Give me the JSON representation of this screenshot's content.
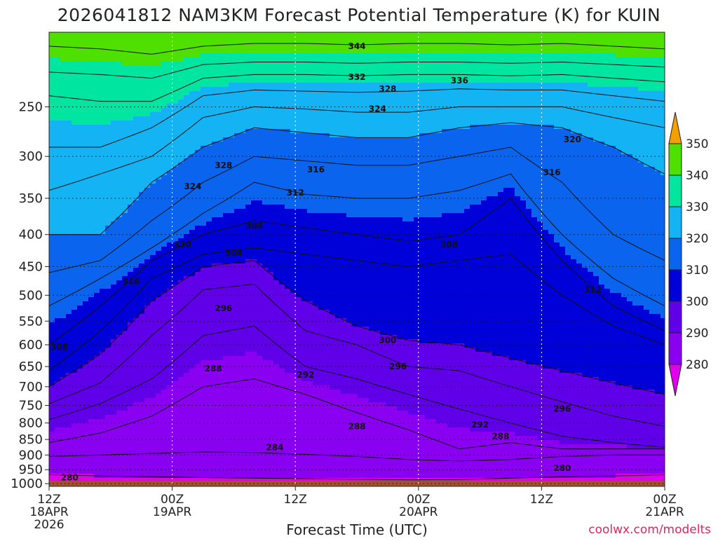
{
  "chart_data": {
    "type": "heatmap",
    "title": "2026041812 NAM3KM Forecast Potential Temperature (K) for KUIN",
    "xlabel": "Forecast Time (UTC)",
    "ylabel": "",
    "credit": "coolwx.com/modelts",
    "y_axis": {
      "scale": "log-pressure",
      "range_hpa": [
        1010,
        190
      ],
      "ticks": [
        "250",
        "300",
        "350",
        "400",
        "450",
        "500",
        "550",
        "600",
        "650",
        "700",
        "750",
        "800",
        "850",
        "900",
        "950",
        "1000"
      ]
    },
    "x_axis": {
      "range_hours": [
        0,
        60
      ],
      "ticks": [
        {
          "hour": 0,
          "lines": [
            "12Z",
            "18APR",
            "2026"
          ]
        },
        {
          "hour": 12,
          "lines": [
            "00Z",
            "19APR"
          ]
        },
        {
          "hour": 24,
          "lines": [
            "12Z"
          ]
        },
        {
          "hour": 36,
          "lines": [
            "00Z",
            "20APR"
          ]
        },
        {
          "hour": 48,
          "lines": [
            "12Z"
          ]
        },
        {
          "hour": 60,
          "lines": [
            "00Z",
            "21APR"
          ]
        }
      ]
    },
    "colorbar": {
      "levels": [
        280,
        290,
        300,
        310,
        320,
        330,
        340,
        350
      ],
      "labels": [
        "280",
        "290",
        "300",
        "310",
        "320",
        "330",
        "340",
        "350"
      ],
      "colors": [
        "#e000f0",
        "#8a00f0",
        "#6000e8",
        "#0000d8",
        "#0a64ee",
        "#14b4f4",
        "#00e6a0",
        "#50e000",
        "#f4f400",
        "#f4a000"
      ]
    },
    "ground_color": "#a0522d",
    "surface_pressure_hpa": 990,
    "contour_interval": 2,
    "isentropes": [
      {
        "theta": 280,
        "pressure_hpa": [
          968,
          972,
          975,
          978,
          980,
          982,
          984,
          986,
          985,
          980,
          975,
          972,
          968
        ]
      },
      {
        "theta": 284,
        "pressure_hpa": [
          905,
          900,
          895,
          890,
          892,
          898,
          905,
          915,
          920,
          915,
          905,
          900,
          900
        ]
      },
      {
        "theta": 288,
        "pressure_hpa": [
          860,
          830,
          780,
          700,
          680,
          720,
          770,
          820,
          880,
          860,
          880,
          880,
          880
        ]
      },
      {
        "theta": 292,
        "pressure_hpa": [
          790,
          745,
          680,
          580,
          560,
          650,
          680,
          720,
          760,
          800,
          840,
          860,
          875
        ]
      },
      {
        "theta": 296,
        "pressure_hpa": [
          745,
          690,
          580,
          490,
          480,
          570,
          600,
          650,
          660,
          700,
          740,
          780,
          810
        ]
      },
      {
        "theta": 300,
        "pressure_hpa": [
          700,
          620,
          510,
          450,
          440,
          510,
          560,
          590,
          600,
          630,
          660,
          690,
          720
        ]
      },
      {
        "theta": 304,
        "pressure_hpa": [
          660,
          570,
          470,
          430,
          420,
          430,
          440,
          450,
          440,
          430,
          500,
          560,
          600
        ]
      },
      {
        "theta": 308,
        "pressure_hpa": [
          600,
          520,
          440,
          400,
          380,
          390,
          400,
          410,
          400,
          350,
          440,
          520,
          570
        ]
      },
      {
        "theta": 312,
        "pressure_hpa": [
          520,
          470,
          420,
          370,
          330,
          345,
          350,
          350,
          340,
          320,
          400,
          470,
          520
        ]
      },
      {
        "theta": 316,
        "pressure_hpa": [
          460,
          440,
          380,
          330,
          300,
          305,
          310,
          310,
          300,
          290,
          330,
          400,
          440
        ]
      },
      {
        "theta": 320,
        "pressure_hpa": [
          400,
          400,
          330,
          290,
          270,
          275,
          280,
          280,
          270,
          265,
          270,
          290,
          320
        ]
      },
      {
        "theta": 324,
        "pressure_hpa": [
          340,
          320,
          300,
          260,
          250,
          252,
          255,
          255,
          250,
          250,
          250,
          260,
          270
        ]
      },
      {
        "theta": 328,
        "pressure_hpa": [
          290,
          290,
          270,
          240,
          235,
          236,
          237,
          236,
          234,
          235,
          235,
          240,
          245
        ]
      },
      {
        "theta": 332,
        "pressure_hpa": [
          240,
          245,
          245,
          225,
          222,
          222,
          223,
          222,
          222,
          223,
          222,
          225,
          228
        ]
      },
      {
        "theta": 336,
        "pressure_hpa": [
          220,
          222,
          225,
          214,
          212,
          212,
          213,
          212,
          212,
          213,
          212,
          214,
          216
        ]
      },
      {
        "theta": 344,
        "pressure_hpa": [
          200,
          202,
          206,
          200,
          198,
          198,
          199,
          198,
          198,
          199,
          198,
          200,
          202
        ]
      }
    ],
    "contour_labels": [
      {
        "text": "344",
        "hour": 30,
        "hpa": 200
      },
      {
        "text": "332",
        "hour": 30,
        "hpa": 224
      },
      {
        "text": "328",
        "hour": 33,
        "hpa": 234
      },
      {
        "text": "336",
        "hour": 40,
        "hpa": 227
      },
      {
        "text": "324",
        "hour": 32,
        "hpa": 252
      },
      {
        "text": "320",
        "hour": 51,
        "hpa": 282
      },
      {
        "text": "328",
        "hour": 17,
        "hpa": 310
      },
      {
        "text": "316",
        "hour": 26,
        "hpa": 315
      },
      {
        "text": "316",
        "hour": 49,
        "hpa": 318
      },
      {
        "text": "324",
        "hour": 14,
        "hpa": 335
      },
      {
        "text": "312",
        "hour": 24,
        "hpa": 343
      },
      {
        "text": "308",
        "hour": 20,
        "hpa": 387
      },
      {
        "text": "320",
        "hour": 13,
        "hpa": 415
      },
      {
        "text": "308",
        "hour": 39,
        "hpa": 415
      },
      {
        "text": "304",
        "hour": 18,
        "hpa": 428
      },
      {
        "text": "316",
        "hour": 8,
        "hpa": 475
      },
      {
        "text": "312",
        "hour": 53,
        "hpa": 490
      },
      {
        "text": "296",
        "hour": 17,
        "hpa": 525
      },
      {
        "text": "300",
        "hour": 33,
        "hpa": 590
      },
      {
        "text": "308",
        "hour": 1,
        "hpa": 605
      },
      {
        "text": "296",
        "hour": 34,
        "hpa": 650
      },
      {
        "text": "288",
        "hour": 16,
        "hpa": 655
      },
      {
        "text": "292",
        "hour": 25,
        "hpa": 670
      },
      {
        "text": "296",
        "hour": 50,
        "hpa": 760
      },
      {
        "text": "288",
        "hour": 30,
        "hpa": 810
      },
      {
        "text": "292",
        "hour": 42,
        "hpa": 805
      },
      {
        "text": "288",
        "hour": 44,
        "hpa": 840
      },
      {
        "text": "284",
        "hour": 22,
        "hpa": 875
      },
      {
        "text": "280",
        "hour": 50,
        "hpa": 945
      },
      {
        "text": "280",
        "hour": 2,
        "hpa": 978
      }
    ]
  }
}
